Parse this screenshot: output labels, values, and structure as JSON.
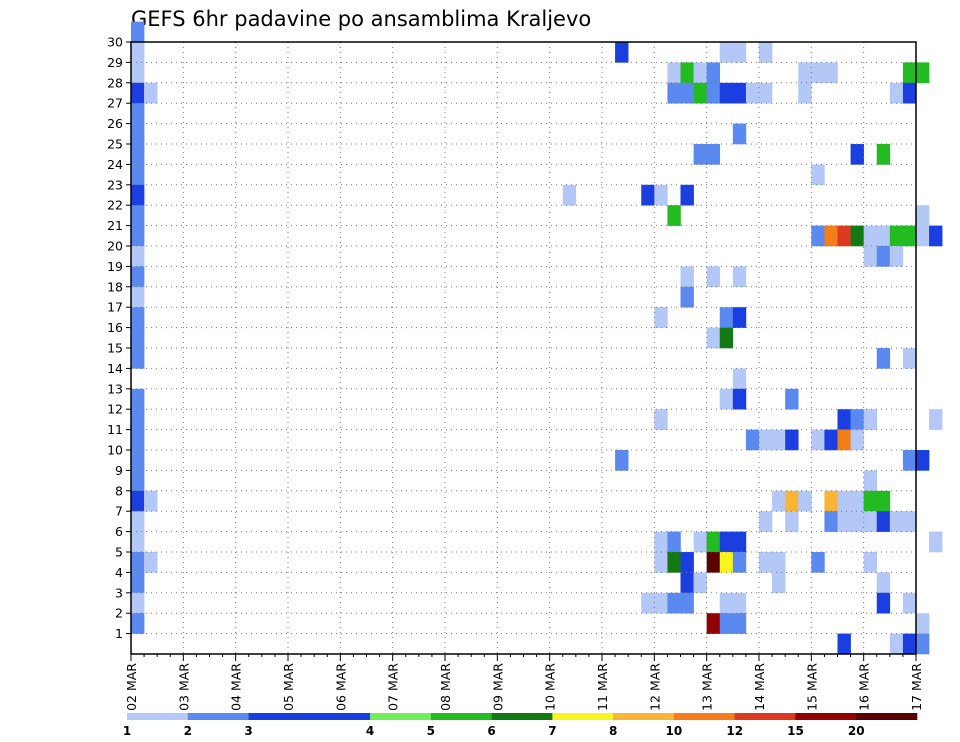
{
  "chart_data": {
    "type": "heatmap",
    "title": "GEFS 6hr padavine po ansamblima Kraljevo",
    "x_ticks": [
      "02 MAR",
      "03 MAR",
      "04 MAR",
      "05 MAR",
      "06 MAR",
      "07 MAR",
      "08 MAR",
      "09 MAR",
      "10 MAR",
      "11 MAR",
      "12 MAR",
      "13 MAR",
      "14 MAR",
      "15 MAR",
      "16 MAR",
      "17 MAR"
    ],
    "y_ticks": [
      1,
      2,
      3,
      4,
      5,
      6,
      7,
      8,
      9,
      10,
      11,
      12,
      13,
      14,
      15,
      16,
      17,
      18,
      19,
      20,
      21,
      22,
      23,
      24,
      25,
      26,
      27,
      28,
      29,
      30
    ],
    "x_range": [
      "2 MAR 00z",
      "17 MAR 00z"
    ],
    "time_step_hours": 6,
    "y_range": [
      0,
      30
    ],
    "grid": true,
    "legend_position": "bottom",
    "legend": {
      "labels": [
        "1",
        "2",
        "3",
        "4",
        "5",
        "6",
        "7",
        "8",
        "10",
        "12",
        "15",
        "20"
      ],
      "colors": [
        "#b4c8f8",
        "#5a8af0",
        "#1a3ee0",
        "#1a3ee0",
        "#72ee5a",
        "#22bb22",
        "#137a13",
        "#f6f61c",
        "#fbb434",
        "#f57d1a",
        "#db3a1e",
        "#920000",
        "#5a0000"
      ]
    },
    "cells": [
      [
        0,
        30,
        2
      ],
      [
        0,
        29,
        1
      ],
      [
        0,
        28,
        1
      ],
      [
        0,
        27,
        3
      ],
      [
        1,
        27,
        1
      ],
      [
        0,
        26,
        2
      ],
      [
        0,
        25,
        2
      ],
      [
        0,
        24,
        2
      ],
      [
        0,
        23,
        2
      ],
      [
        0,
        22,
        3
      ],
      [
        0,
        21,
        2
      ],
      [
        0,
        20,
        2
      ],
      [
        0,
        19,
        1
      ],
      [
        0,
        18,
        2
      ],
      [
        0,
        17,
        1
      ],
      [
        0,
        16,
        2
      ],
      [
        0,
        15,
        2
      ],
      [
        0,
        14,
        2
      ],
      [
        0,
        12,
        2
      ],
      [
        0,
        11,
        2
      ],
      [
        0,
        10,
        2
      ],
      [
        0,
        9,
        2
      ],
      [
        0,
        8,
        2
      ],
      [
        0,
        7,
        3
      ],
      [
        1,
        7,
        1
      ],
      [
        0,
        6,
        1
      ],
      [
        0,
        5,
        1
      ],
      [
        0,
        4,
        2
      ],
      [
        1,
        4,
        1
      ],
      [
        0,
        3,
        2
      ],
      [
        0,
        2,
        1
      ],
      [
        0,
        1,
        2
      ],
      [
        33,
        22,
        1
      ],
      [
        37,
        29,
        3
      ],
      [
        39,
        22,
        3
      ],
      [
        40,
        22,
        1
      ],
      [
        42,
        22,
        3
      ],
      [
        41,
        21,
        5
      ],
      [
        41,
        28,
        1
      ],
      [
        42,
        28,
        5
      ],
      [
        43,
        28,
        1
      ],
      [
        44,
        28,
        2
      ],
      [
        41,
        27,
        2
      ],
      [
        42,
        27,
        2
      ],
      [
        43,
        27,
        5
      ],
      [
        44,
        27,
        2
      ],
      [
        45,
        27,
        3
      ],
      [
        46,
        27,
        3
      ],
      [
        47,
        27,
        1
      ],
      [
        48,
        27,
        1
      ],
      [
        45,
        29,
        1
      ],
      [
        46,
        29,
        1
      ],
      [
        48,
        29,
        1
      ],
      [
        51,
        28,
        1
      ],
      [
        52,
        28,
        1
      ],
      [
        53,
        28,
        1
      ],
      [
        51,
        27,
        1
      ],
      [
        59,
        28,
        5
      ],
      [
        60,
        28,
        5
      ],
      [
        58,
        27,
        1
      ],
      [
        59,
        27,
        3
      ],
      [
        43,
        24,
        2
      ],
      [
        44,
        24,
        2
      ],
      [
        46,
        25,
        2
      ],
      [
        55,
        24,
        3
      ],
      [
        57,
        24,
        5
      ],
      [
        52,
        23,
        1
      ],
      [
        60,
        21,
        1
      ],
      [
        52,
        20,
        2
      ],
      [
        53,
        20,
        10
      ],
      [
        54,
        20,
        12
      ],
      [
        55,
        20,
        6
      ],
      [
        56,
        20,
        1
      ],
      [
        57,
        20,
        1
      ],
      [
        58,
        20,
        5
      ],
      [
        59,
        20,
        5
      ],
      [
        60,
        20,
        1
      ],
      [
        61,
        20,
        3
      ],
      [
        56,
        19,
        1
      ],
      [
        57,
        19,
        2
      ],
      [
        58,
        19,
        1
      ],
      [
        42,
        18,
        1
      ],
      [
        44,
        18,
        1
      ],
      [
        46,
        18,
        1
      ],
      [
        42,
        17,
        2
      ],
      [
        40,
        16,
        1
      ],
      [
        45,
        16,
        2
      ],
      [
        46,
        16,
        3
      ],
      [
        44,
        15,
        1
      ],
      [
        45,
        15,
        6
      ],
      [
        57,
        14,
        2
      ],
      [
        59,
        14,
        1
      ],
      [
        46,
        13,
        1
      ],
      [
        50,
        12,
        2
      ],
      [
        45,
        12,
        1
      ],
      [
        46,
        12,
        3
      ],
      [
        40,
        11,
        1
      ],
      [
        54,
        11,
        3
      ],
      [
        55,
        11,
        2
      ],
      [
        56,
        11,
        1
      ],
      [
        61,
        11,
        1
      ],
      [
        47,
        10,
        2
      ],
      [
        48,
        10,
        1
      ],
      [
        49,
        10,
        1
      ],
      [
        50,
        10,
        3
      ],
      [
        52,
        10,
        1
      ],
      [
        53,
        10,
        3
      ],
      [
        54,
        10,
        10
      ],
      [
        55,
        10,
        1
      ],
      [
        37,
        9,
        2
      ],
      [
        59,
        9,
        2
      ],
      [
        60,
        9,
        3
      ],
      [
        56,
        8,
        1
      ],
      [
        49,
        7,
        1
      ],
      [
        50,
        7,
        8
      ],
      [
        51,
        7,
        1
      ],
      [
        53,
        7,
        8
      ],
      [
        54,
        7,
        1
      ],
      [
        55,
        7,
        1
      ],
      [
        56,
        7,
        5
      ],
      [
        57,
        7,
        5
      ],
      [
        48,
        6,
        1
      ],
      [
        50,
        6,
        1
      ],
      [
        53,
        6,
        2
      ],
      [
        54,
        6,
        1
      ],
      [
        55,
        6,
        1
      ],
      [
        56,
        6,
        1
      ],
      [
        57,
        6,
        3
      ],
      [
        58,
        6,
        1
      ],
      [
        59,
        6,
        1
      ],
      [
        40,
        5,
        1
      ],
      [
        41,
        5,
        2
      ],
      [
        43,
        5,
        1
      ],
      [
        44,
        5,
        5
      ],
      [
        45,
        5,
        3
      ],
      [
        46,
        5,
        3
      ],
      [
        61,
        5,
        1
      ],
      [
        40,
        4,
        1
      ],
      [
        41,
        4,
        6
      ],
      [
        42,
        4,
        3
      ],
      [
        44,
        4,
        20
      ],
      [
        45,
        4,
        7
      ],
      [
        46,
        4,
        2
      ],
      [
        48,
        4,
        1
      ],
      [
        49,
        4,
        1
      ],
      [
        52,
        4,
        2
      ],
      [
        56,
        4,
        1
      ],
      [
        42,
        3,
        3
      ],
      [
        43,
        3,
        1
      ],
      [
        49,
        3,
        1
      ],
      [
        57,
        3,
        1
      ],
      [
        39,
        2,
        1
      ],
      [
        40,
        2,
        1
      ],
      [
        41,
        2,
        2
      ],
      [
        42,
        2,
        2
      ],
      [
        45,
        2,
        1
      ],
      [
        46,
        2,
        1
      ],
      [
        57,
        2,
        3
      ],
      [
        59,
        2,
        1
      ],
      [
        44,
        1,
        15
      ],
      [
        45,
        1,
        2
      ],
      [
        46,
        1,
        2
      ],
      [
        60,
        1,
        1
      ],
      [
        54,
        0,
        3
      ],
      [
        58,
        0,
        1
      ],
      [
        59,
        0,
        3
      ],
      [
        60,
        0,
        2
      ]
    ]
  }
}
